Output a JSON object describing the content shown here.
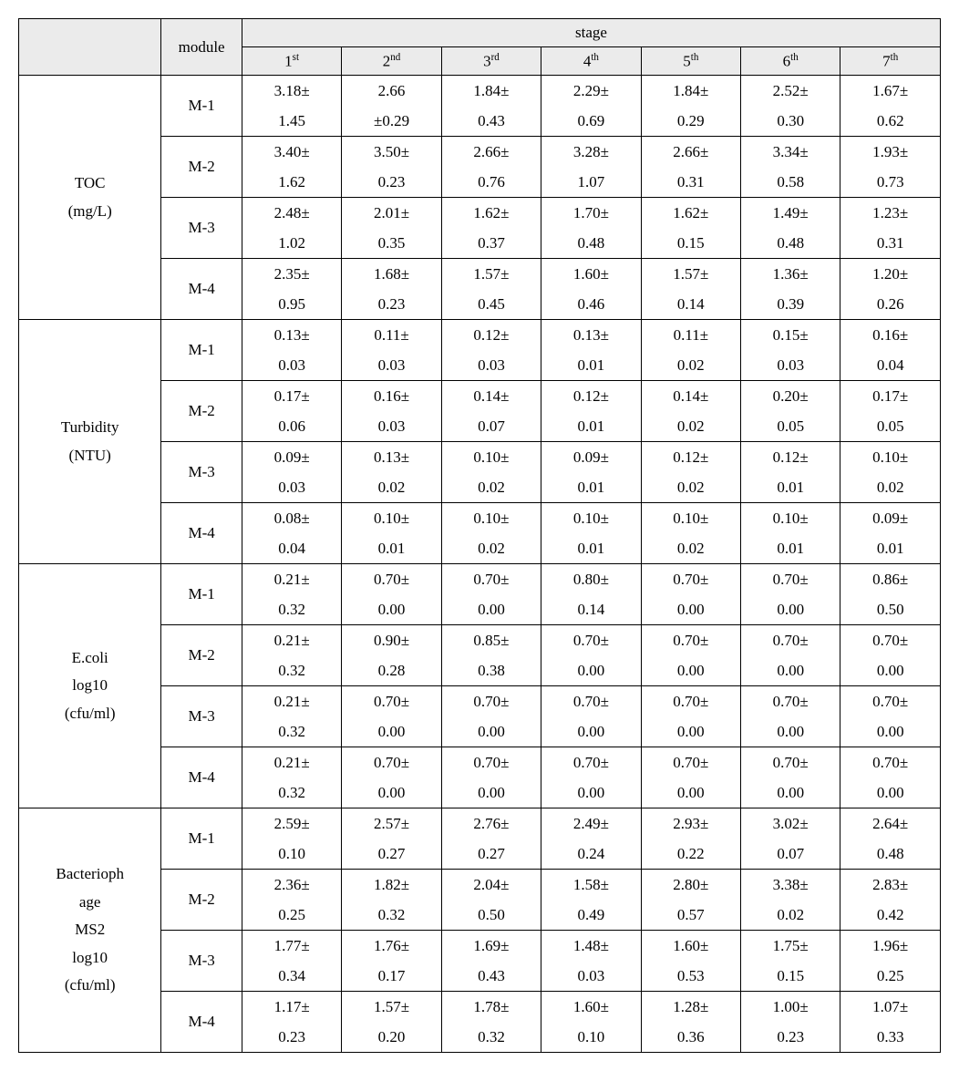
{
  "headers": {
    "module": "module",
    "stage": "stage",
    "ordinals": [
      {
        "num": "1",
        "suf": "st"
      },
      {
        "num": "2",
        "suf": "nd"
      },
      {
        "num": "3",
        "suf": "rd"
      },
      {
        "num": "4",
        "suf": "th"
      },
      {
        "num": "5",
        "suf": "th"
      },
      {
        "num": "6",
        "suf": "th"
      },
      {
        "num": "7",
        "suf": "th"
      }
    ]
  },
  "groups": [
    {
      "category": "TOC\n(mg/L)",
      "rows": [
        {
          "module": "M-1",
          "cells": [
            [
              "3.18±",
              "1.45"
            ],
            [
              "2.66",
              "±0.29"
            ],
            [
              "1.84±",
              "0.43"
            ],
            [
              "2.29±",
              "0.69"
            ],
            [
              "1.84±",
              "0.29"
            ],
            [
              "2.52±",
              "0.30"
            ],
            [
              "1.67±",
              "0.62"
            ]
          ]
        },
        {
          "module": "M-2",
          "cells": [
            [
              "3.40±",
              "1.62"
            ],
            [
              "3.50±",
              "0.23"
            ],
            [
              "2.66±",
              "0.76"
            ],
            [
              "3.28±",
              "1.07"
            ],
            [
              "2.66±",
              "0.31"
            ],
            [
              "3.34±",
              "0.58"
            ],
            [
              "1.93±",
              "0.73"
            ]
          ]
        },
        {
          "module": "M-3",
          "cells": [
            [
              "2.48±",
              "1.02"
            ],
            [
              "2.01±",
              "0.35"
            ],
            [
              "1.62±",
              "0.37"
            ],
            [
              "1.70±",
              "0.48"
            ],
            [
              "1.62±",
              "0.15"
            ],
            [
              "1.49±",
              "0.48"
            ],
            [
              "1.23±",
              "0.31"
            ]
          ]
        },
        {
          "module": "M-4",
          "cells": [
            [
              "2.35±",
              "0.95"
            ],
            [
              "1.68±",
              "0.23"
            ],
            [
              "1.57±",
              "0.45"
            ],
            [
              "1.60±",
              "0.46"
            ],
            [
              "1.57±",
              "0.14"
            ],
            [
              "1.36±",
              "0.39"
            ],
            [
              "1.20±",
              "0.26"
            ]
          ]
        }
      ]
    },
    {
      "category": "Turbidity\n(NTU)",
      "rows": [
        {
          "module": "M-1",
          "cells": [
            [
              "0.13±",
              "0.03"
            ],
            [
              "0.11±",
              "0.03"
            ],
            [
              "0.12±",
              "0.03"
            ],
            [
              "0.13±",
              "0.01"
            ],
            [
              "0.11±",
              "0.02"
            ],
            [
              "0.15±",
              "0.03"
            ],
            [
              "0.16±",
              "0.04"
            ]
          ]
        },
        {
          "module": "M-2",
          "cells": [
            [
              "0.17±",
              "0.06"
            ],
            [
              "0.16±",
              "0.03"
            ],
            [
              "0.14±",
              "0.07"
            ],
            [
              "0.12±",
              "0.01"
            ],
            [
              "0.14±",
              "0.02"
            ],
            [
              "0.20±",
              "0.05"
            ],
            [
              "0.17±",
              "0.05"
            ]
          ]
        },
        {
          "module": "M-3",
          "cells": [
            [
              "0.09±",
              "0.03"
            ],
            [
              "0.13±",
              "0.02"
            ],
            [
              "0.10±",
              "0.02"
            ],
            [
              "0.09±",
              "0.01"
            ],
            [
              "0.12±",
              "0.02"
            ],
            [
              "0.12±",
              "0.01"
            ],
            [
              "0.10±",
              "0.02"
            ]
          ]
        },
        {
          "module": "M-4",
          "cells": [
            [
              "0.08±",
              "0.04"
            ],
            [
              "0.10±",
              "0.01"
            ],
            [
              "0.10±",
              "0.02"
            ],
            [
              "0.10±",
              "0.01"
            ],
            [
              "0.10±",
              "0.02"
            ],
            [
              "0.10±",
              "0.01"
            ],
            [
              "0.09±",
              "0.01"
            ]
          ]
        }
      ]
    },
    {
      "category": "E.coli\nlog10\n(cfu/ml)",
      "rows": [
        {
          "module": "M-1",
          "cells": [
            [
              "0.21±",
              "0.32"
            ],
            [
              "0.70±",
              "0.00"
            ],
            [
              "0.70±",
              "0.00"
            ],
            [
              "0.80±",
              "0.14"
            ],
            [
              "0.70±",
              "0.00"
            ],
            [
              "0.70±",
              "0.00"
            ],
            [
              "0.86±",
              "0.50"
            ]
          ]
        },
        {
          "module": "M-2",
          "cells": [
            [
              "0.21±",
              "0.32"
            ],
            [
              "0.90±",
              "0.28"
            ],
            [
              "0.85±",
              "0.38"
            ],
            [
              "0.70±",
              "0.00"
            ],
            [
              "0.70±",
              "0.00"
            ],
            [
              "0.70±",
              "0.00"
            ],
            [
              "0.70±",
              "0.00"
            ]
          ]
        },
        {
          "module": "M-3",
          "cells": [
            [
              "0.21±",
              "0.32"
            ],
            [
              "0.70±",
              "0.00"
            ],
            [
              "0.70±",
              "0.00"
            ],
            [
              "0.70±",
              "0.00"
            ],
            [
              "0.70±",
              "0.00"
            ],
            [
              "0.70±",
              "0.00"
            ],
            [
              "0.70±",
              "0.00"
            ]
          ]
        },
        {
          "module": "M-4",
          "cells": [
            [
              "0.21±",
              "0.32"
            ],
            [
              "0.70±",
              "0.00"
            ],
            [
              "0.70±",
              "0.00"
            ],
            [
              "0.70±",
              "0.00"
            ],
            [
              "0.70±",
              "0.00"
            ],
            [
              "0.70±",
              "0.00"
            ],
            [
              "0.70±",
              "0.00"
            ]
          ]
        }
      ]
    },
    {
      "category": "Bacterioph\nage\nMS2\nlog10\n(cfu/ml)",
      "rows": [
        {
          "module": "M-1",
          "cells": [
            [
              "2.59±",
              "0.10"
            ],
            [
              "2.57±",
              "0.27"
            ],
            [
              "2.76±",
              "0.27"
            ],
            [
              "2.49±",
              "0.24"
            ],
            [
              "2.93±",
              "0.22"
            ],
            [
              "3.02±",
              "0.07"
            ],
            [
              "2.64±",
              "0.48"
            ]
          ]
        },
        {
          "module": "M-2",
          "cells": [
            [
              "2.36±",
              "0.25"
            ],
            [
              "1.82±",
              "0.32"
            ],
            [
              "2.04±",
              "0.50"
            ],
            [
              "1.58±",
              "0.49"
            ],
            [
              "2.80±",
              "0.57"
            ],
            [
              "3.38±",
              "0.02"
            ],
            [
              "2.83±",
              "0.42"
            ]
          ]
        },
        {
          "module": "M-3",
          "cells": [
            [
              "1.77±",
              "0.34"
            ],
            [
              "1.76±",
              "0.17"
            ],
            [
              "1.69±",
              "0.43"
            ],
            [
              "1.48±",
              "0.03"
            ],
            [
              "1.60±",
              "0.53"
            ],
            [
              "1.75±",
              "0.15"
            ],
            [
              "1.96±",
              "0.25"
            ]
          ]
        },
        {
          "module": "M-4",
          "cells": [
            [
              "1.17±",
              "0.23"
            ],
            [
              "1.57±",
              "0.20"
            ],
            [
              "1.78±",
              "0.32"
            ],
            [
              "1.60±",
              "0.10"
            ],
            [
              "1.28±",
              "0.36"
            ],
            [
              "1.00±",
              "0.23"
            ],
            [
              "1.07±",
              "0.33"
            ]
          ]
        }
      ]
    }
  ]
}
